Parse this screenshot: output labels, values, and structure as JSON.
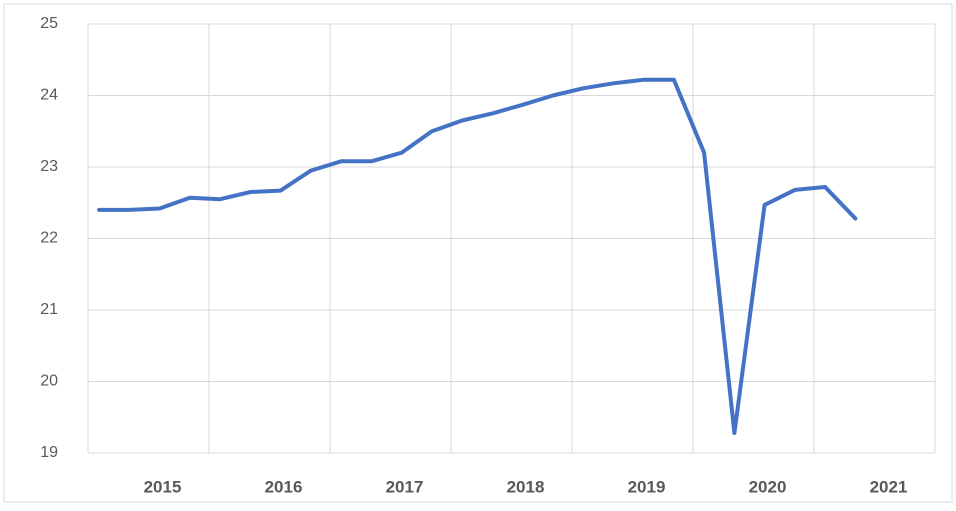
{
  "chart_data": {
    "type": "line",
    "year_labels": [
      "2015",
      "2016",
      "2017",
      "2018",
      "2019",
      "2020",
      "2021"
    ],
    "series": [
      {
        "color": "#4472c4",
        "values": [
          22.4,
          22.4,
          22.42,
          22.57,
          22.55,
          22.65,
          22.67,
          22.95,
          23.08,
          23.08,
          23.2,
          23.5,
          23.65,
          23.75,
          23.87,
          24.0,
          24.1,
          24.17,
          24.22,
          24.22,
          23.2,
          19.28,
          22.47,
          22.68,
          22.72,
          22.28,
          null,
          null
        ]
      }
    ],
    "ylim": [
      19,
      25
    ],
    "yticks": [
      19,
      20,
      21,
      22,
      23,
      24,
      25
    ],
    "grid": true
  }
}
